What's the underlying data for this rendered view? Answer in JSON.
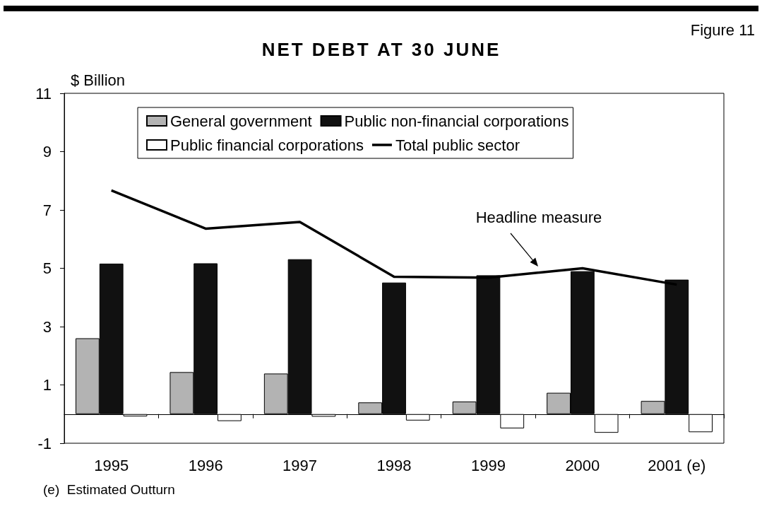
{
  "chart_data": {
    "type": "bar",
    "title": "NET DEBT AT 30 JUNE",
    "ylabel": "$ Billion",
    "annotations": [
      "Figure 11",
      "Headline measure",
      "(e)  Estimated Outturn"
    ],
    "categories": [
      "1995",
      "1996",
      "1997",
      "1998",
      "1999",
      "2000",
      "2001 (e)"
    ],
    "series": [
      {
        "name": "General government",
        "color": "#b3b3b3",
        "values": [
          2.6,
          1.44,
          1.39,
          0.4,
          0.43,
          0.73,
          0.45
        ]
      },
      {
        "name": "Public non-financial corporations",
        "color": "#111111",
        "values": [
          5.16,
          5.17,
          5.31,
          4.51,
          4.76,
          4.9,
          4.61
        ]
      },
      {
        "name": "Public financial corporations",
        "color": "#ffffff",
        "values": [
          -0.08,
          -0.24,
          -0.09,
          -0.22,
          -0.49,
          -0.64,
          -0.62
        ]
      },
      {
        "name": "Total public sector",
        "type": "line",
        "color": "#000000",
        "values": [
          7.67,
          6.36,
          6.59,
          4.71,
          4.68,
          5.0,
          4.44
        ]
      }
    ],
    "ylim": [
      -1,
      11
    ],
    "yticks": [
      -1,
      1,
      3,
      5,
      7,
      9,
      11
    ],
    "grid": false,
    "legend": "top",
    "marker": "none",
    "line_style": "solid"
  }
}
